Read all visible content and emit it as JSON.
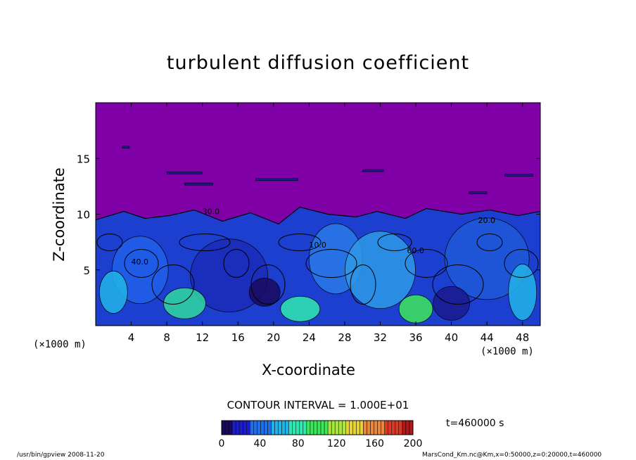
{
  "chart_data": {
    "type": "heatmap",
    "title": "turbulent diffusion coefficient",
    "xlabel": "X-coordinate",
    "ylabel": "Z-coordinate",
    "x_unit_left": "(×1000 m)",
    "x_unit_right": "(×1000 m)",
    "xlim": [
      0,
      50
    ],
    "ylim": [
      0,
      20
    ],
    "x_ticks": [
      "4",
      "8",
      "12",
      "16",
      "20",
      "24",
      "28",
      "32",
      "36",
      "40",
      "44",
      "48"
    ],
    "x_tick_values": [
      4,
      8,
      12,
      16,
      20,
      24,
      28,
      32,
      36,
      40,
      44,
      48
    ],
    "y_ticks": [
      "5",
      "10",
      "15"
    ],
    "y_tick_values": [
      5,
      10,
      15
    ],
    "contour_interval": "CONTOUR INTERVAL = 1.000E+01",
    "contour_labels": [
      "30.0",
      "40.0",
      "60.0",
      "20.0",
      "10.0"
    ],
    "colorbar": {
      "ticks": [
        "0",
        "40",
        "80",
        "120",
        "160",
        "200"
      ],
      "tick_values": [
        0,
        40,
        80,
        120,
        160,
        200
      ],
      "range": [
        0,
        200
      ],
      "colors": [
        "#1a0a5e",
        "#1c1cc8",
        "#1f6fe8",
        "#22b4e8",
        "#2fe8b0",
        "#3ce85a",
        "#a8e83a",
        "#e8d23a",
        "#e8883a",
        "#d83a2a",
        "#b01a1a"
      ]
    },
    "time_label": "t=460000 s",
    "top_region_color": "#8000a8",
    "top_region_value": 0,
    "turbulent_layer_top_km": 10
  },
  "footer": {
    "left": "/usr/bin/gpview  2008-11-20",
    "right": "MarsCond_Km.nc@Km,x=0:50000,z=0:20000,t=460000"
  }
}
